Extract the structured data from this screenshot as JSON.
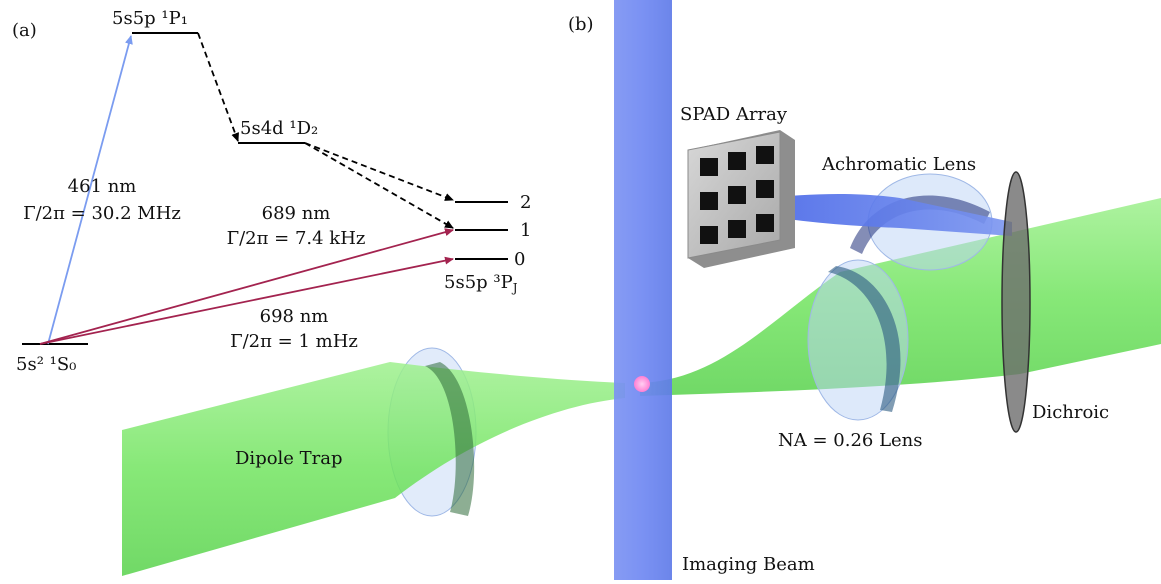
{
  "panel_a": {
    "label": "(a)",
    "levels": {
      "p1": "5s5p ¹P₁",
      "d2": "5s4d ¹D₂",
      "s0": "5s² ¹S₀",
      "pj": "5s5p ³P",
      "pj_sub": "J",
      "j2": "2",
      "j1": "1",
      "j0": "0"
    },
    "transitions": {
      "t461_wavelength": "461 nm",
      "t461_linewidth": "Γ/2π = 30.2 MHz",
      "t689_wavelength": "689 nm",
      "t689_linewidth": "Γ/2π = 7.4 kHz",
      "t698_wavelength": "698 nm",
      "t698_linewidth": "Γ/2π = 1 mHz"
    },
    "colors": {
      "blue_transition": "#7b9cf0",
      "red_transition": "#a3234f",
      "decay": "#000000"
    }
  },
  "panel_b": {
    "label": "(b)",
    "labels": {
      "spad": "SPAD Array",
      "achromatic": "Achromatic Lens",
      "dichroic": "Dichroic",
      "na_lens": "NA = 0.26 Lens",
      "dipole_trap": "Dipole Trap",
      "imaging_beam": "Imaging Beam"
    },
    "colors": {
      "dipole_beam": "#6ee86a",
      "imaging_beam": "#6f88f2",
      "fluorescence": "#5577ee",
      "atom": "#ff8fd8",
      "lens_glass": "#bcd3f5",
      "spad_body": "#bdbdbd",
      "dichroic": "#555555"
    }
  }
}
